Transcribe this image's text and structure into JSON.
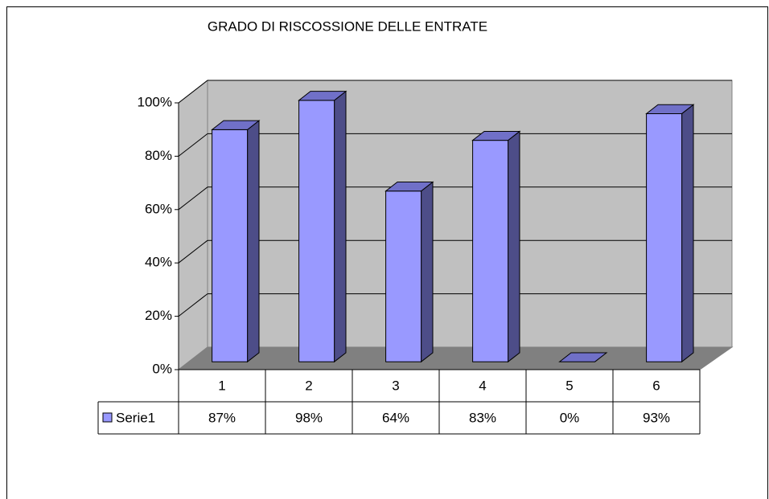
{
  "chart_data": {
    "type": "bar3d",
    "title": "GRADO DI RISCOSSIONE DELLE ENTRATE",
    "categories": [
      "1",
      "2",
      "3",
      "4",
      "5",
      "6"
    ],
    "series": [
      {
        "name": "Serie1",
        "color": "#9999ff",
        "values": [
          87,
          98,
          64,
          83,
          0,
          93
        ],
        "value_labels": [
          "87%",
          "98%",
          "64%",
          "83%",
          "0%",
          "93%"
        ]
      }
    ],
    "ylim": [
      0,
      100
    ],
    "yticks": [
      {
        "value": 0,
        "label": "0%"
      },
      {
        "value": 20,
        "label": "20%"
      },
      {
        "value": 40,
        "label": "40%"
      },
      {
        "value": 60,
        "label": "60%"
      },
      {
        "value": 80,
        "label": "80%"
      },
      {
        "value": 100,
        "label": "100%"
      }
    ],
    "grid": true
  }
}
